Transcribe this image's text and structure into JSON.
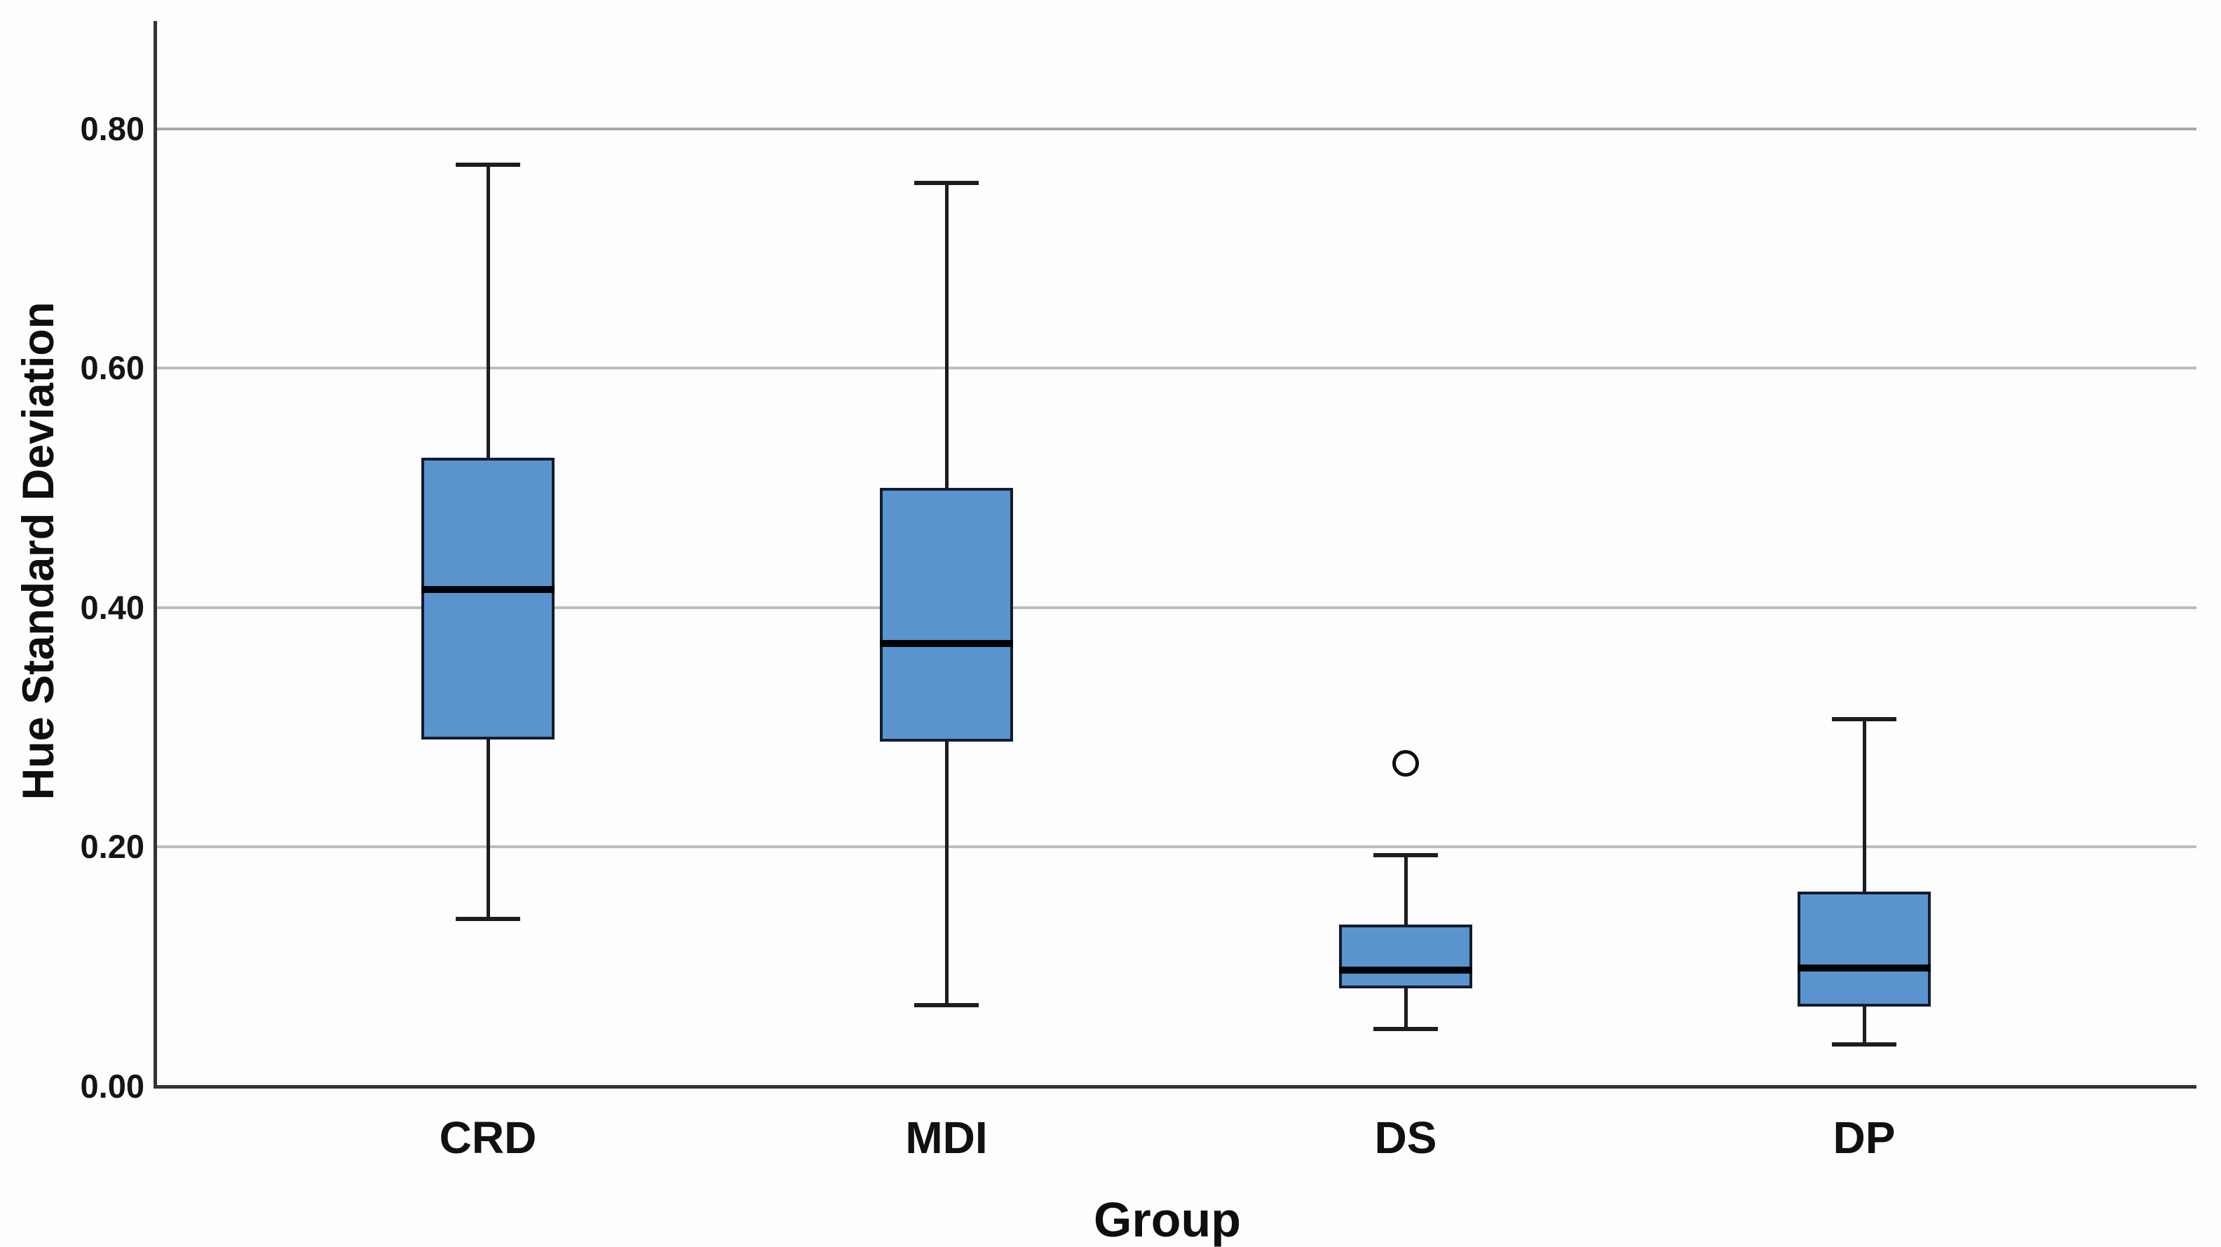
{
  "chart_data": {
    "type": "boxplot",
    "title": "",
    "xlabel": "Group",
    "ylabel": "Hue Standard Deviation",
    "categories": [
      "CRD",
      "MDI",
      "DS",
      "DP"
    ],
    "ylim": [
      0,
      0.89
    ],
    "grid": "horizontal-only",
    "legend": "none",
    "yticks": [
      {
        "v": 0.0,
        "label": "0.00"
      },
      {
        "v": 0.2,
        "label": "0.20"
      },
      {
        "v": 0.4,
        "label": "0.40"
      },
      {
        "v": 0.6,
        "label": "0.60"
      },
      {
        "v": 0.8,
        "label": "0.80"
      }
    ],
    "series": [
      {
        "group": "CRD",
        "whisker_low": 0.14,
        "q1": 0.29,
        "median": 0.415,
        "q3": 0.525,
        "whisker_high": 0.77,
        "outliers": []
      },
      {
        "group": "MDI",
        "whisker_low": 0.068,
        "q1": 0.288,
        "median": 0.37,
        "q3": 0.5,
        "whisker_high": 0.755,
        "outliers": []
      },
      {
        "group": "DS",
        "whisker_low": 0.048,
        "q1": 0.082,
        "median": 0.097,
        "q3": 0.135,
        "whisker_high": 0.193,
        "outliers": [
          0.27
        ]
      },
      {
        "group": "DP",
        "whisker_low": 0.035,
        "q1": 0.067,
        "median": 0.099,
        "q3": 0.163,
        "whisker_high": 0.307,
        "outliers": []
      }
    ],
    "colors": {
      "box_fill": "#5B93CE",
      "box_border": "#121c2e",
      "median": "#000408",
      "whisker": "#1d1d1d",
      "gridline": "#bdbdbd",
      "axis": "#333333",
      "text": "#111111",
      "background": "#fdfdfd"
    }
  },
  "layout_note": "SPSS-style boxplot, no top/right frame, no tick marks"
}
